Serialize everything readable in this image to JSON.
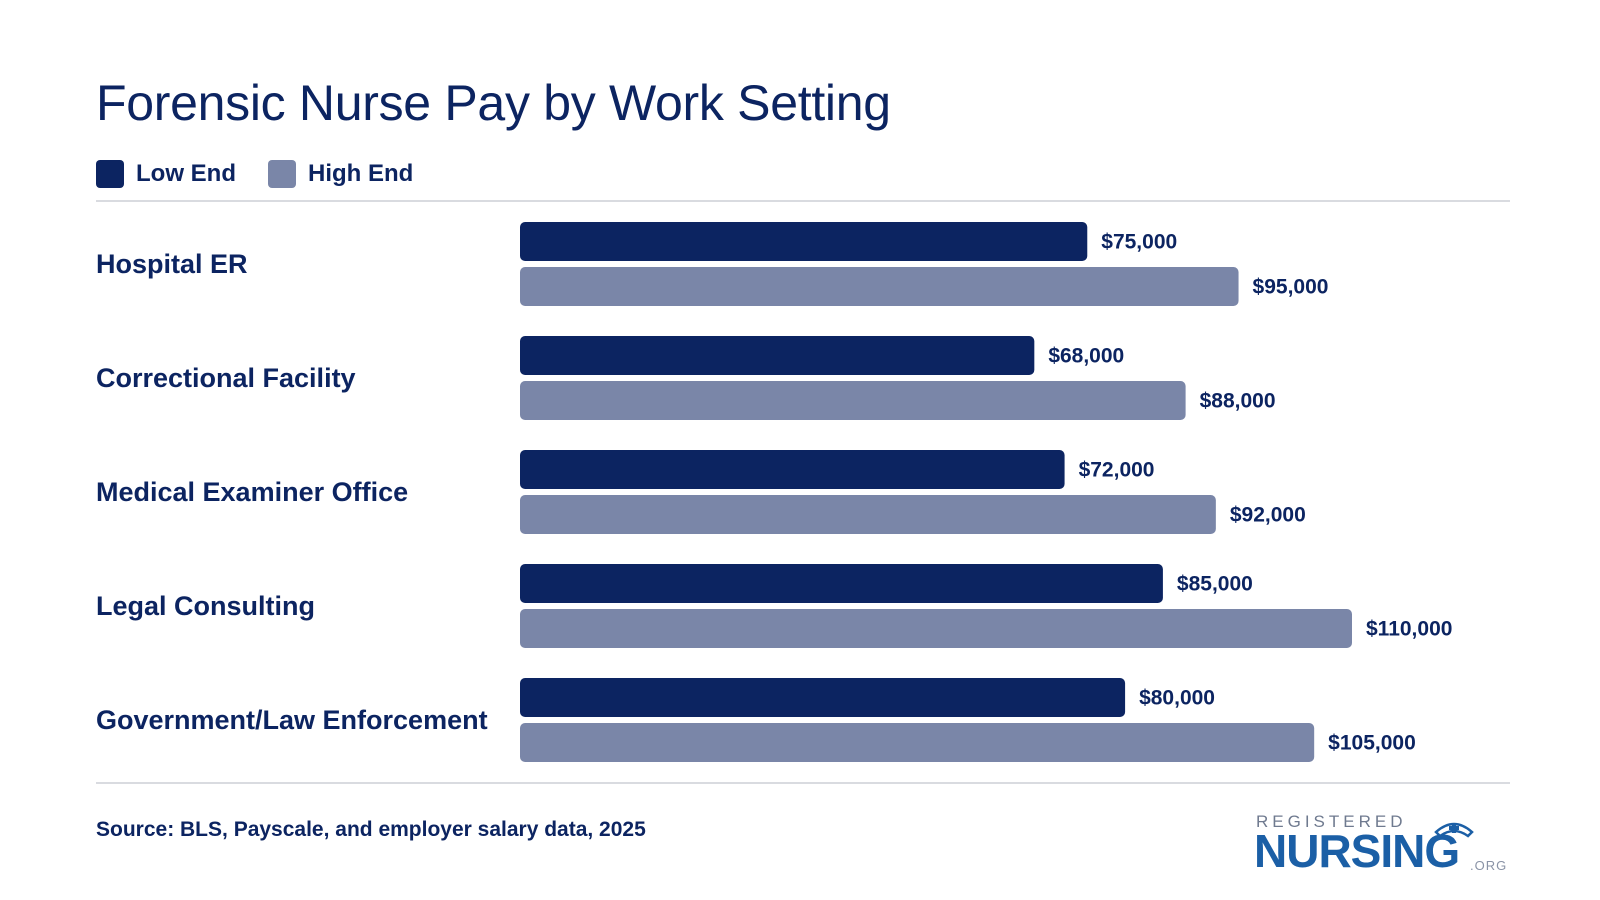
{
  "chart_data": {
    "type": "bar",
    "orientation": "horizontal",
    "title": "Forensic Nurse Pay by Work Setting",
    "categories": [
      "Hospital ER",
      "Correctional Facility",
      "Medical Examiner Office",
      "Legal Consulting",
      "Government/Law Enforcement"
    ],
    "series": [
      {
        "name": "Low End",
        "color": "#0c2461",
        "values": [
          75000,
          68000,
          72000,
          85000,
          80000
        ],
        "labels": [
          "$75,000",
          "$68,000",
          "$72,000",
          "$85,000",
          "$80,000"
        ]
      },
      {
        "name": "High End",
        "color": "#7a86a8",
        "values": [
          95000,
          88000,
          92000,
          110000,
          105000
        ],
        "labels": [
          "$95,000",
          "$88,000",
          "$92,000",
          "$110,000",
          "$105,000"
        ]
      }
    ],
    "xlim": [
      0,
      110000
    ],
    "grid": false,
    "legend_position": "top-left"
  },
  "legend": {
    "low_label": "Low End",
    "high_label": "High End"
  },
  "source": "Source: BLS, Payscale, and employer salary data, 2025",
  "logo": {
    "top": "REGISTERED",
    "main": "NURSING",
    "suffix": ".ORG"
  }
}
